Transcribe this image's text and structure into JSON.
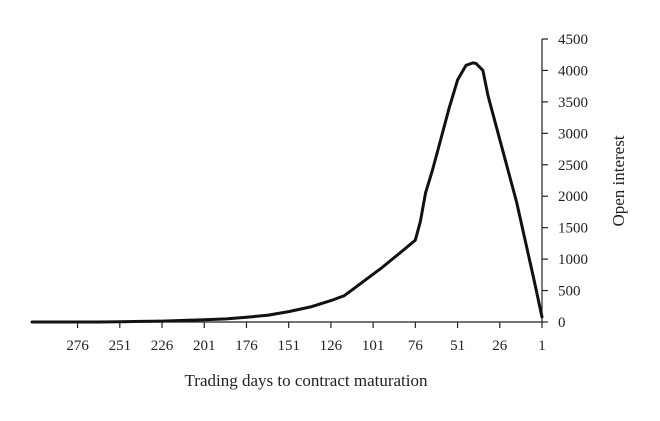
{
  "chart_data": {
    "type": "line",
    "xlabel": "Trading days to contract maturation",
    "ylabel": "Open interest",
    "x_reversed": true,
    "y_axis_side": "right",
    "xlim": [
      303,
      1
    ],
    "ylim": [
      0,
      4500
    ],
    "x_ticks": [
      276,
      251,
      226,
      201,
      176,
      151,
      126,
      101,
      76,
      51,
      26,
      1
    ],
    "y_ticks": [
      0,
      500,
      1000,
      1500,
      2000,
      2500,
      3000,
      3500,
      4000,
      4500
    ],
    "grid": false,
    "legend": "none",
    "line_color": "#111111",
    "series": [
      {
        "x": [
          303,
          290,
          276,
          263,
          251,
          238,
          226,
          213,
          201,
          188,
          176,
          163,
          151,
          138,
          126,
          118,
          113,
          101,
          96,
          86,
          76,
          73,
          70,
          66,
          61,
          56,
          51,
          46,
          42,
          40,
          36,
          33,
          26,
          16,
          6,
          1
        ],
        "y": [
          0,
          0,
          0,
          0,
          5,
          10,
          15,
          25,
          35,
          50,
          75,
          110,
          165,
          240,
          340,
          420,
          520,
          760,
          860,
          1080,
          1300,
          1600,
          2050,
          2400,
          2900,
          3400,
          3850,
          4080,
          4120,
          4110,
          4000,
          3600,
          2900,
          1900,
          700,
          80
        ]
      }
    ]
  }
}
